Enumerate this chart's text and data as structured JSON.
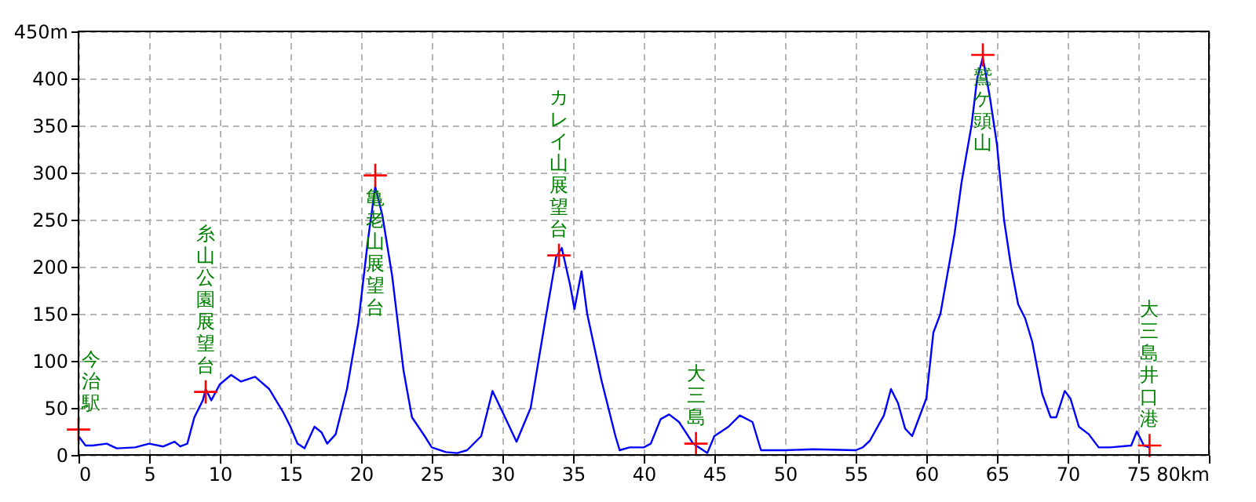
{
  "chart_data": {
    "type": "line",
    "xlim": [
      0,
      80
    ],
    "xticks": [
      0,
      5,
      10,
      15,
      20,
      25,
      30,
      35,
      40,
      45,
      50,
      55,
      60,
      65,
      70,
      75,
      {
        "value": 80,
        "label": "80km"
      }
    ],
    "ylim": [
      0,
      450
    ],
    "yticks": [
      0,
      50,
      100,
      150,
      200,
      250,
      300,
      350,
      400,
      {
        "value": 450,
        "label": "450m"
      }
    ],
    "grid": true,
    "line_style": "solid",
    "series": [
      {
        "color": "#0000ff",
        "marker": "none",
        "x": [
          0,
          0.5,
          1,
          2,
          2.7,
          4,
          5,
          6,
          6.8,
          7.2,
          7.7,
          8.2,
          8.8,
          9,
          9.4,
          10,
          10.8,
          11.5,
          12.5,
          13.5,
          14.5,
          15,
          15.5,
          16,
          16.7,
          17.2,
          17.6,
          18.2,
          19,
          19.8,
          20.5,
          21,
          21.5,
          22.2,
          23,
          23.6,
          24.5,
          25,
          26,
          26.8,
          27.5,
          28.5,
          29.3,
          30.5,
          31,
          32,
          33,
          33.8,
          34.2,
          34.8,
          35.1,
          35.6,
          36,
          37,
          38,
          38.3,
          39,
          40,
          40.5,
          41.2,
          41.8,
          42.5,
          43.5,
          44.5,
          45,
          46,
          46.8,
          47.7,
          48.3,
          50,
          52,
          55,
          55.5,
          56,
          57,
          57.5,
          58,
          58.5,
          59,
          59.5,
          60,
          60.5,
          61,
          62,
          62.5,
          63.2,
          63.6,
          64,
          64.5,
          65,
          65.5,
          66,
          66.5,
          67,
          67.5,
          68.2,
          68.8,
          69.2,
          69.8,
          70.2,
          70.8,
          71.5,
          72.2,
          73,
          74.5,
          74.9,
          75.4,
          75.8
        ],
        "values": [
          20,
          10,
          10,
          12,
          7,
          8,
          12,
          9,
          14,
          9,
          12,
          40,
          58,
          70,
          58,
          75,
          85,
          78,
          83,
          70,
          45,
          30,
          12,
          7,
          30,
          24,
          12,
          22,
          70,
          140,
          230,
          285,
          255,
          190,
          90,
          40,
          20,
          8,
          3,
          2,
          5,
          20,
          68,
          30,
          14,
          50,
          140,
          210,
          220,
          180,
          155,
          195,
          150,
          80,
          20,
          5,
          8,
          8,
          12,
          38,
          43,
          35,
          12,
          2,
          20,
          30,
          42,
          35,
          5,
          5,
          6,
          5,
          8,
          15,
          42,
          70,
          55,
          28,
          20,
          40,
          60,
          130,
          150,
          235,
          290,
          350,
          400,
          422,
          380,
          330,
          250,
          200,
          160,
          145,
          120,
          65,
          40,
          40,
          68,
          60,
          30,
          22,
          8,
          8,
          10,
          25,
          10,
          8
        ]
      },
      {
        "type": "scatter",
        "color": "#ff0000",
        "marker": "cross",
        "x": [
          0,
          9,
          21,
          34,
          43.7,
          64,
          75.8
        ],
        "values": [
          27,
          67,
          297,
          212,
          12,
          425,
          10
        ]
      }
    ],
    "annotations": [
      {
        "text": "今治駅",
        "x": 0,
        "y": 27
      },
      {
        "text": "糸山公園展望台",
        "x": 9,
        "y": 67
      },
      {
        "text": "亀老山展望台",
        "x": 21,
        "y": 297
      },
      {
        "text": "カレイ山展望台",
        "x": 34,
        "y": 212
      },
      {
        "text": "大三島",
        "x": 43.7,
        "y": 12
      },
      {
        "text": "鷲ケ頭山",
        "x": 64,
        "y": 425
      },
      {
        "text": "大三島井口港",
        "x": 75.8,
        "y": 10
      }
    ]
  }
}
